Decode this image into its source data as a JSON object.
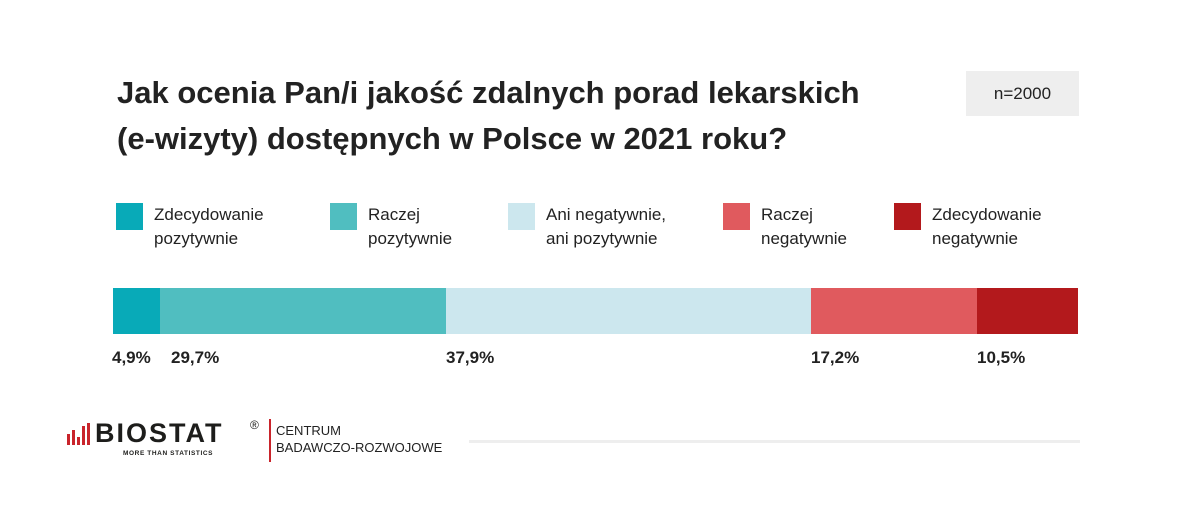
{
  "title_lines": [
    "Jak ocenia Pan/i jakość zdalnych porad lekarskich",
    "(e-wizyty) dostępnych w Polsce w 2021 roku?"
  ],
  "sample_size": "n=2000",
  "colors": {
    "zdecydowanie_pozytywnie": "#08aab8",
    "raczej_pozytywnie": "#50bec0",
    "neutral": "#cce7ee",
    "raczej_negatywnie": "#e05a5e",
    "zdecydowanie_negatywnie": "#b3191c"
  },
  "legend": [
    {
      "lines": [
        "Zdecydowanie",
        "pozytywnie"
      ],
      "color": "#08aab8"
    },
    {
      "lines": [
        "Raczej",
        "pozytywnie"
      ],
      "color": "#50bec0"
    },
    {
      "lines": [
        "Ani negatywnie,",
        "ani pozytywnie"
      ],
      "color": "#cce7ee"
    },
    {
      "lines": [
        "Raczej",
        "negatywnie"
      ],
      "color": "#e05a5e"
    },
    {
      "lines": [
        "Zdecydowanie",
        "negatywnie"
      ],
      "color": "#b3191c"
    }
  ],
  "chart_data": {
    "type": "bar",
    "orientation": "horizontal-stacked",
    "title": "Jak ocenia Pan/i jakość zdalnych porad lekarskich (e-wizyty) dostępnych w Polsce w 2021 roku?",
    "series": [
      {
        "name": "Zdecydowanie pozytywnie",
        "value": 4.9,
        "label": "4,9%",
        "color": "#08aab8"
      },
      {
        "name": "Raczej pozytywnie",
        "value": 29.7,
        "label": "29,7%",
        "color": "#50bec0"
      },
      {
        "name": "Ani negatywnie, ani pozytywnie",
        "value": 37.9,
        "label": "37,9%",
        "color": "#cce7ee"
      },
      {
        "name": "Raczej negatywnie",
        "value": 17.2,
        "label": "17,2%",
        "color": "#e05a5e"
      },
      {
        "name": "Zdecydowanie negatywnie",
        "value": 10.5,
        "label": "10,5%",
        "color": "#b3191c"
      }
    ],
    "legend_position": "top",
    "grid": false
  },
  "footer": {
    "logo_text": "BIOSTAT",
    "logo_reg": "®",
    "logo_tagline": "MORE THAN STATISTICS",
    "side_lines": [
      "CENTRUM",
      "BADAWCZO-ROZWOJOWE"
    ],
    "logo_color": "#c9242b"
  }
}
